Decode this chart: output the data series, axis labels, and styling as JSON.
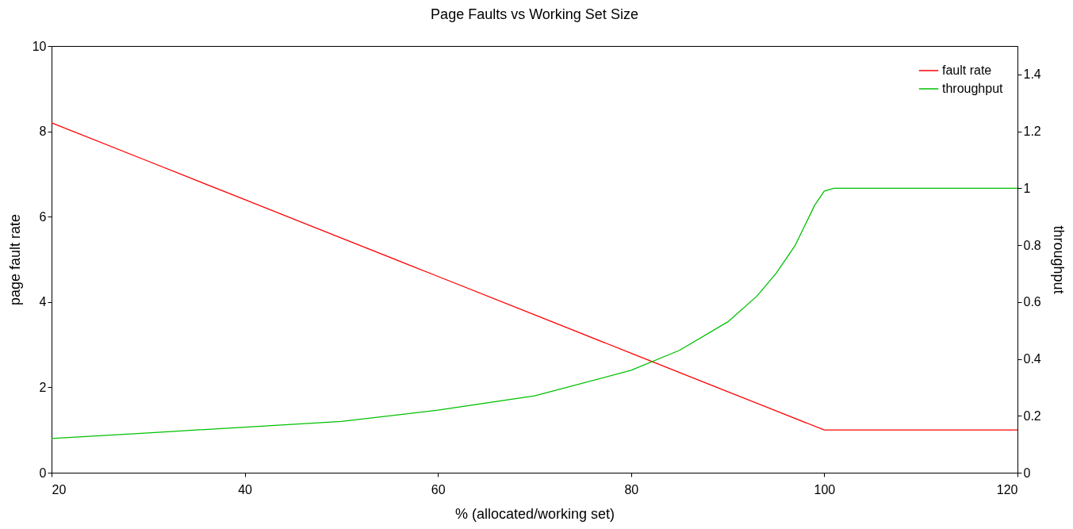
{
  "chart_data": {
    "type": "line",
    "title": "Page Faults vs Working Set Size",
    "xlabel": "% (allocated/working set)",
    "ylabel": "page fault rate",
    "y2label": "throughput",
    "xlim": [
      20,
      120
    ],
    "xticks": [
      20,
      40,
      60,
      80,
      100,
      120
    ],
    "ylim": [
      0,
      10
    ],
    "yticks": [
      0,
      2,
      4,
      6,
      8,
      10
    ],
    "y2lim": [
      0,
      1.5
    ],
    "y2ticks": [
      0,
      0.2,
      0.4,
      0.6,
      0.8,
      1,
      1.2,
      1.4
    ],
    "grid": false,
    "legend": "top right",
    "marker": "none",
    "line_style": "solid",
    "series": [
      {
        "name": "fault rate",
        "color": "#ff0000",
        "x": [
          20,
          30,
          40,
          50,
          60,
          70,
          80,
          90,
          100,
          101,
          120
        ],
        "values": [
          8.2,
          7.3,
          6.4,
          5.5,
          4.6,
          3.7,
          2.8,
          1.9,
          1.0,
          1.0,
          1.0
        ]
      },
      {
        "name": "throughput",
        "color": "#00c000",
        "axis": "y2",
        "x": [
          20,
          30,
          40,
          50,
          60,
          70,
          80,
          85,
          90,
          93,
          95,
          97,
          98,
          99,
          100,
          101,
          120
        ],
        "values": [
          0.12,
          0.14,
          0.16,
          0.18,
          0.22,
          0.27,
          0.36,
          0.43,
          0.53,
          0.62,
          0.7,
          0.8,
          0.87,
          0.94,
          0.99,
          1.0,
          1.0
        ]
      }
    ]
  }
}
